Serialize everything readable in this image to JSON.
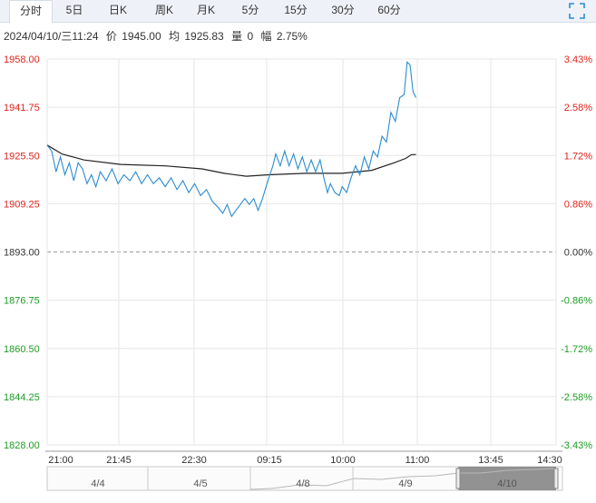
{
  "tabs": [
    {
      "label": "分时",
      "active": true
    },
    {
      "label": "5日",
      "active": false
    },
    {
      "label": "日K",
      "active": false
    },
    {
      "label": "周K",
      "active": false
    },
    {
      "label": "月K",
      "active": false
    },
    {
      "label": "5分",
      "active": false
    },
    {
      "label": "15分",
      "active": false
    },
    {
      "label": "30分",
      "active": false
    },
    {
      "label": "60分",
      "active": false
    }
  ],
  "quote": {
    "datetime": "2024/04/10/三11:24",
    "price_label": "价",
    "price": "1945.00",
    "avg_label": "均",
    "avg": "1925.83",
    "volume_label": "量",
    "volume": "0",
    "change_label": "幅",
    "change": "2.75%"
  },
  "colors": {
    "up": "#e0231c",
    "down": "#1f9b26",
    "neutral": "#333333",
    "price_line": "#2a8ccf",
    "avg_line": "#222222",
    "grid": "#e6e6e6",
    "nav_fill": "#7f7f7f"
  },
  "chart_data": {
    "type": "line",
    "base": 1893.0,
    "ylim": [
      1828.0,
      1958.0
    ],
    "y_ticks": [
      "1958.00",
      "1941.75",
      "1925.50",
      "1909.25",
      "1893.00",
      "1876.75",
      "1860.50",
      "1844.25",
      "1828.00"
    ],
    "pct_ticks": [
      "3.43%",
      "2.58%",
      "1.72%",
      "0.86%",
      "0.00%",
      "-0.86%",
      "-1.72%",
      "-2.58%",
      "-3.43%"
    ],
    "x_ticks": [
      "21:00",
      "21:45",
      "22:30",
      "09:15",
      "10:00",
      "11:00",
      "13:45",
      "14:30"
    ],
    "navigator_dates": [
      "4/4",
      "4/5",
      "4/8",
      "4/9",
      "4/10"
    ],
    "sessions_total": 345,
    "series": [
      {
        "key": "price",
        "points": [
          [
            0,
            1929
          ],
          [
            3,
            1927
          ],
          [
            6,
            1920
          ],
          [
            9,
            1925
          ],
          [
            12,
            1919
          ],
          [
            15,
            1923
          ],
          [
            18,
            1917
          ],
          [
            21,
            1923
          ],
          [
            24,
            1921
          ],
          [
            27,
            1916
          ],
          [
            30,
            1919
          ],
          [
            33,
            1915
          ],
          [
            36,
            1920
          ],
          [
            40,
            1917
          ],
          [
            44,
            1921
          ],
          [
            48,
            1916
          ],
          [
            52,
            1919
          ],
          [
            56,
            1917
          ],
          [
            60,
            1920
          ],
          [
            64,
            1916
          ],
          [
            68,
            1919
          ],
          [
            72,
            1916
          ],
          [
            76,
            1918
          ],
          [
            80,
            1915
          ],
          [
            84,
            1918
          ],
          [
            88,
            1914
          ],
          [
            92,
            1917
          ],
          [
            96,
            1913
          ],
          [
            100,
            1916
          ],
          [
            104,
            1912
          ],
          [
            108,
            1914
          ],
          [
            112,
            1910
          ],
          [
            116,
            1908
          ],
          [
            119,
            1906
          ],
          [
            122,
            1909
          ],
          [
            125,
            1905
          ],
          [
            128,
            1907
          ],
          [
            131,
            1909
          ],
          [
            134,
            1911
          ],
          [
            137,
            1909
          ],
          [
            140,
            1911
          ],
          [
            143,
            1907
          ],
          [
            146,
            1911
          ],
          [
            149,
            1916
          ],
          [
            151,
            1919
          ],
          [
            153,
            1922
          ],
          [
            155,
            1926
          ],
          [
            158,
            1922
          ],
          [
            161,
            1927
          ],
          [
            164,
            1922
          ],
          [
            167,
            1926
          ],
          [
            170,
            1921
          ],
          [
            173,
            1925
          ],
          [
            176,
            1920
          ],
          [
            179,
            1924
          ],
          [
            182,
            1920
          ],
          [
            185,
            1924
          ],
          [
            188,
            1917
          ],
          [
            190,
            1913
          ],
          [
            192,
            1916
          ],
          [
            195,
            1913
          ],
          [
            198,
            1912
          ],
          [
            200,
            1915
          ],
          [
            203,
            1913
          ],
          [
            206,
            1918
          ],
          [
            209,
            1922
          ],
          [
            212,
            1919
          ],
          [
            215,
            1925
          ],
          [
            218,
            1921
          ],
          [
            221,
            1927
          ],
          [
            224,
            1925
          ],
          [
            227,
            1932
          ],
          [
            230,
            1930
          ],
          [
            233,
            1940
          ],
          [
            236,
            1937
          ],
          [
            239,
            1945
          ],
          [
            242,
            1946
          ],
          [
            244,
            1957
          ],
          [
            246,
            1956
          ],
          [
            248,
            1947
          ],
          [
            250,
            1945
          ]
        ]
      },
      {
        "key": "avg",
        "points": [
          [
            0,
            1929
          ],
          [
            10,
            1926
          ],
          [
            25,
            1924
          ],
          [
            50,
            1922.5
          ],
          [
            80,
            1922
          ],
          [
            105,
            1921
          ],
          [
            120,
            1919.5
          ],
          [
            135,
            1918.5
          ],
          [
            150,
            1919
          ],
          [
            175,
            1919.5
          ],
          [
            200,
            1919.5
          ],
          [
            220,
            1920.5
          ],
          [
            235,
            1923
          ],
          [
            243,
            1924.5
          ],
          [
            247,
            1925.8
          ],
          [
            250,
            1925.83
          ]
        ]
      }
    ]
  }
}
